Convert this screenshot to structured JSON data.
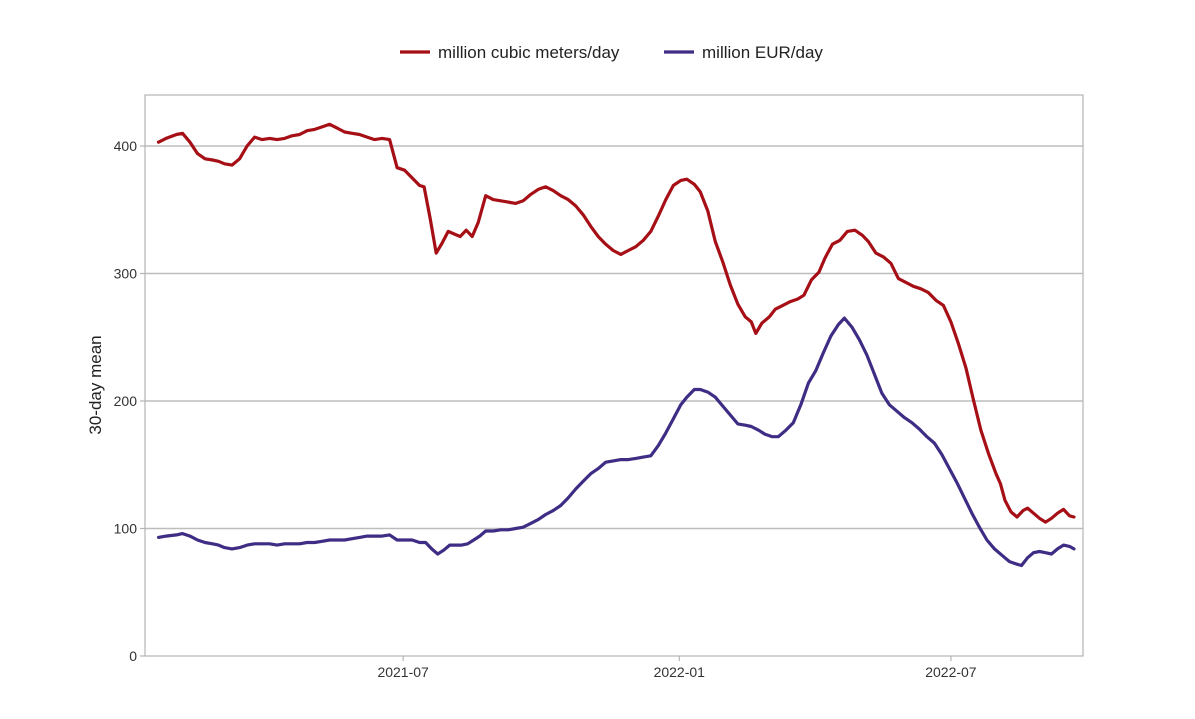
{
  "chart_data": {
    "type": "line",
    "title": "",
    "xlabel": "",
    "ylabel": "30-day mean",
    "ylim": [
      0,
      440
    ],
    "xlim": [
      "2021-01-10",
      "2022-09-27"
    ],
    "x_ticks": [
      "2021-07",
      "2022-01",
      "2022-07"
    ],
    "y_ticks": [
      0,
      100,
      200,
      300,
      400
    ],
    "grid": "horizontal major gridlines at 100, 200, 300, 400",
    "legend_position": "top",
    "series": [
      {
        "name": "million cubic meters/day",
        "color": "#a50f15",
        "points": [
          [
            "2021-01-19",
            403
          ],
          [
            "2021-01-24",
            406
          ],
          [
            "2021-01-31",
            409
          ],
          [
            "2021-02-04",
            410
          ],
          [
            "2021-02-09",
            403
          ],
          [
            "2021-02-14",
            394
          ],
          [
            "2021-02-19",
            390
          ],
          [
            "2021-02-24",
            389
          ],
          [
            "2021-02-28",
            388
          ],
          [
            "2021-03-04",
            386
          ],
          [
            "2021-03-09",
            385
          ],
          [
            "2021-03-14",
            390
          ],
          [
            "2021-03-19",
            400
          ],
          [
            "2021-03-24",
            407
          ],
          [
            "2021-03-29",
            405
          ],
          [
            "2021-04-03",
            406
          ],
          [
            "2021-04-08",
            405
          ],
          [
            "2021-04-13",
            406
          ],
          [
            "2021-04-18",
            408
          ],
          [
            "2021-04-23",
            409
          ],
          [
            "2021-04-28",
            412
          ],
          [
            "2021-05-03",
            413
          ],
          [
            "2021-05-08",
            415
          ],
          [
            "2021-05-13",
            417
          ],
          [
            "2021-05-18",
            414
          ],
          [
            "2021-05-23",
            411
          ],
          [
            "2021-05-28",
            410
          ],
          [
            "2021-06-02",
            409
          ],
          [
            "2021-06-07",
            407
          ],
          [
            "2021-06-12",
            405
          ],
          [
            "2021-06-17",
            406
          ],
          [
            "2021-06-22",
            405
          ],
          [
            "2021-06-27",
            383
          ],
          [
            "2021-07-02",
            381
          ],
          [
            "2021-07-07",
            375
          ],
          [
            "2021-07-12",
            369
          ],
          [
            "2021-07-15",
            368
          ],
          [
            "2021-07-19",
            343
          ],
          [
            "2021-07-23",
            316
          ],
          [
            "2021-07-27",
            324
          ],
          [
            "2021-07-31",
            333
          ],
          [
            "2021-08-04",
            331
          ],
          [
            "2021-08-08",
            329
          ],
          [
            "2021-08-12",
            334
          ],
          [
            "2021-08-16",
            329
          ],
          [
            "2021-08-20",
            340
          ],
          [
            "2021-08-25",
            361
          ],
          [
            "2021-08-30",
            358
          ],
          [
            "2021-09-04",
            357
          ],
          [
            "2021-09-09",
            356
          ],
          [
            "2021-09-14",
            355
          ],
          [
            "2021-09-19",
            357
          ],
          [
            "2021-09-24",
            362
          ],
          [
            "2021-09-29",
            366
          ],
          [
            "2021-10-04",
            368
          ],
          [
            "2021-10-09",
            365
          ],
          [
            "2021-10-14",
            361
          ],
          [
            "2021-10-19",
            358
          ],
          [
            "2021-10-24",
            353
          ],
          [
            "2021-10-29",
            346
          ],
          [
            "2021-11-03",
            337
          ],
          [
            "2021-11-08",
            329
          ],
          [
            "2021-11-13",
            323
          ],
          [
            "2021-11-18",
            318
          ],
          [
            "2021-11-23",
            315
          ],
          [
            "2021-11-28",
            318
          ],
          [
            "2021-12-03",
            321
          ],
          [
            "2021-12-08",
            326
          ],
          [
            "2021-12-13",
            333
          ],
          [
            "2021-12-18",
            345
          ],
          [
            "2021-12-23",
            358
          ],
          [
            "2021-12-28",
            369
          ],
          [
            "2022-01-02",
            373
          ],
          [
            "2022-01-06",
            374
          ],
          [
            "2022-01-11",
            370
          ],
          [
            "2022-01-15",
            364
          ],
          [
            "2022-01-20",
            349
          ],
          [
            "2022-01-25",
            325
          ],
          [
            "2022-01-30",
            309
          ],
          [
            "2022-02-04",
            291
          ],
          [
            "2022-02-09",
            276
          ],
          [
            "2022-02-14",
            266
          ],
          [
            "2022-02-18",
            262
          ],
          [
            "2022-02-21",
            253
          ],
          [
            "2022-02-25",
            261
          ],
          [
            "2022-03-02",
            266
          ],
          [
            "2022-03-06",
            272
          ],
          [
            "2022-03-11",
            275
          ],
          [
            "2022-03-16",
            278
          ],
          [
            "2022-03-21",
            280
          ],
          [
            "2022-03-25",
            283
          ],
          [
            "2022-03-30",
            295
          ],
          [
            "2022-04-04",
            301
          ],
          [
            "2022-04-08",
            312
          ],
          [
            "2022-04-13",
            323
          ],
          [
            "2022-04-18",
            326
          ],
          [
            "2022-04-23",
            333
          ],
          [
            "2022-04-28",
            334
          ],
          [
            "2022-05-03",
            330
          ],
          [
            "2022-05-07",
            325
          ],
          [
            "2022-05-12",
            316
          ],
          [
            "2022-05-17",
            313
          ],
          [
            "2022-05-22",
            308
          ],
          [
            "2022-05-27",
            296
          ],
          [
            "2022-06-01",
            293
          ],
          [
            "2022-06-06",
            290
          ],
          [
            "2022-06-11",
            288
          ],
          [
            "2022-06-16",
            285
          ],
          [
            "2022-06-21",
            279
          ],
          [
            "2022-06-26",
            275
          ],
          [
            "2022-07-01",
            262
          ],
          [
            "2022-07-06",
            245
          ],
          [
            "2022-07-11",
            226
          ],
          [
            "2022-07-16",
            201
          ],
          [
            "2022-07-21",
            177
          ],
          [
            "2022-07-26",
            159
          ],
          [
            "2022-07-31",
            143
          ],
          [
            "2022-08-03",
            135
          ],
          [
            "2022-08-06",
            122
          ],
          [
            "2022-08-10",
            113
          ],
          [
            "2022-08-14",
            109
          ],
          [
            "2022-08-18",
            114
          ],
          [
            "2022-08-21",
            116
          ],
          [
            "2022-08-25",
            112
          ],
          [
            "2022-08-29",
            108
          ],
          [
            "2022-09-02",
            105
          ],
          [
            "2022-09-06",
            108
          ],
          [
            "2022-09-10",
            112
          ],
          [
            "2022-09-14",
            115
          ],
          [
            "2022-09-18",
            110
          ],
          [
            "2022-09-21",
            109
          ]
        ]
      },
      {
        "name": "million EUR/day",
        "color": "#3f2c84",
        "points": [
          [
            "2021-01-19",
            93
          ],
          [
            "2021-01-24",
            94
          ],
          [
            "2021-01-31",
            95
          ],
          [
            "2021-02-04",
            96
          ],
          [
            "2021-02-09",
            94
          ],
          [
            "2021-02-14",
            91
          ],
          [
            "2021-02-19",
            89
          ],
          [
            "2021-02-24",
            88
          ],
          [
            "2021-02-28",
            87
          ],
          [
            "2021-03-04",
            85
          ],
          [
            "2021-03-09",
            84
          ],
          [
            "2021-03-14",
            85
          ],
          [
            "2021-03-19",
            87
          ],
          [
            "2021-03-24",
            88
          ],
          [
            "2021-03-29",
            88
          ],
          [
            "2021-04-03",
            88
          ],
          [
            "2021-04-08",
            87
          ],
          [
            "2021-04-13",
            88
          ],
          [
            "2021-04-18",
            88
          ],
          [
            "2021-04-23",
            88
          ],
          [
            "2021-04-28",
            89
          ],
          [
            "2021-05-03",
            89
          ],
          [
            "2021-05-08",
            90
          ],
          [
            "2021-05-13",
            91
          ],
          [
            "2021-05-18",
            91
          ],
          [
            "2021-05-23",
            91
          ],
          [
            "2021-05-28",
            92
          ],
          [
            "2021-06-02",
            93
          ],
          [
            "2021-06-07",
            94
          ],
          [
            "2021-06-12",
            94
          ],
          [
            "2021-06-17",
            94
          ],
          [
            "2021-06-22",
            95
          ],
          [
            "2021-06-27",
            91
          ],
          [
            "2021-07-02",
            91
          ],
          [
            "2021-07-07",
            91
          ],
          [
            "2021-07-12",
            89
          ],
          [
            "2021-07-16",
            89
          ],
          [
            "2021-07-20",
            84
          ],
          [
            "2021-07-24",
            80
          ],
          [
            "2021-07-28",
            83
          ],
          [
            "2021-08-01",
            87
          ],
          [
            "2021-08-05",
            87
          ],
          [
            "2021-08-09",
            87
          ],
          [
            "2021-08-13",
            88
          ],
          [
            "2021-08-17",
            91
          ],
          [
            "2021-08-21",
            94
          ],
          [
            "2021-08-25",
            98
          ],
          [
            "2021-08-30",
            98
          ],
          [
            "2021-09-04",
            99
          ],
          [
            "2021-09-09",
            99
          ],
          [
            "2021-09-14",
            100
          ],
          [
            "2021-09-19",
            101
          ],
          [
            "2021-09-24",
            104
          ],
          [
            "2021-09-29",
            107
          ],
          [
            "2021-10-04",
            111
          ],
          [
            "2021-10-09",
            114
          ],
          [
            "2021-10-14",
            118
          ],
          [
            "2021-10-19",
            124
          ],
          [
            "2021-10-24",
            131
          ],
          [
            "2021-10-29",
            137
          ],
          [
            "2021-11-03",
            143
          ],
          [
            "2021-11-08",
            147
          ],
          [
            "2021-11-13",
            152
          ],
          [
            "2021-11-18",
            153
          ],
          [
            "2021-11-23",
            154
          ],
          [
            "2021-11-28",
            154
          ],
          [
            "2021-12-03",
            155
          ],
          [
            "2021-12-08",
            156
          ],
          [
            "2021-12-13",
            157
          ],
          [
            "2021-12-18",
            165
          ],
          [
            "2021-12-23",
            175
          ],
          [
            "2021-12-28",
            186
          ],
          [
            "2022-01-02",
            197
          ],
          [
            "2022-01-06",
            203
          ],
          [
            "2022-01-11",
            209
          ],
          [
            "2022-01-15",
            209
          ],
          [
            "2022-01-20",
            207
          ],
          [
            "2022-01-25",
            203
          ],
          [
            "2022-01-30",
            196
          ],
          [
            "2022-02-04",
            189
          ],
          [
            "2022-02-09",
            182
          ],
          [
            "2022-02-14",
            181
          ],
          [
            "2022-02-18",
            180
          ],
          [
            "2022-02-23",
            177
          ],
          [
            "2022-02-27",
            174
          ],
          [
            "2022-03-04",
            172
          ],
          [
            "2022-03-08",
            172
          ],
          [
            "2022-03-13",
            177
          ],
          [
            "2022-03-18",
            183
          ],
          [
            "2022-03-23",
            197
          ],
          [
            "2022-03-28",
            214
          ],
          [
            "2022-04-02",
            224
          ],
          [
            "2022-04-07",
            238
          ],
          [
            "2022-04-12",
            251
          ],
          [
            "2022-04-17",
            260
          ],
          [
            "2022-04-21",
            265
          ],
          [
            "2022-04-26",
            258
          ],
          [
            "2022-05-01",
            248
          ],
          [
            "2022-05-06",
            236
          ],
          [
            "2022-05-11",
            221
          ],
          [
            "2022-05-16",
            206
          ],
          [
            "2022-05-21",
            197
          ],
          [
            "2022-05-26",
            192
          ],
          [
            "2022-05-31",
            187
          ],
          [
            "2022-06-05",
            183
          ],
          [
            "2022-06-10",
            178
          ],
          [
            "2022-06-15",
            172
          ],
          [
            "2022-06-20",
            167
          ],
          [
            "2022-06-25",
            158
          ],
          [
            "2022-06-30",
            147
          ],
          [
            "2022-07-05",
            136
          ],
          [
            "2022-07-10",
            124
          ],
          [
            "2022-07-15",
            112
          ],
          [
            "2022-07-20",
            101
          ],
          [
            "2022-07-25",
            91
          ],
          [
            "2022-07-30",
            84
          ],
          [
            "2022-08-04",
            79
          ],
          [
            "2022-08-09",
            74
          ],
          [
            "2022-08-14",
            72
          ],
          [
            "2022-08-17",
            71
          ],
          [
            "2022-08-21",
            77
          ],
          [
            "2022-08-25",
            81
          ],
          [
            "2022-08-29",
            82
          ],
          [
            "2022-09-02",
            81
          ],
          [
            "2022-09-06",
            80
          ],
          [
            "2022-09-10",
            84
          ],
          [
            "2022-09-14",
            87
          ],
          [
            "2022-09-18",
            86
          ],
          [
            "2022-09-21",
            84
          ]
        ]
      }
    ]
  }
}
